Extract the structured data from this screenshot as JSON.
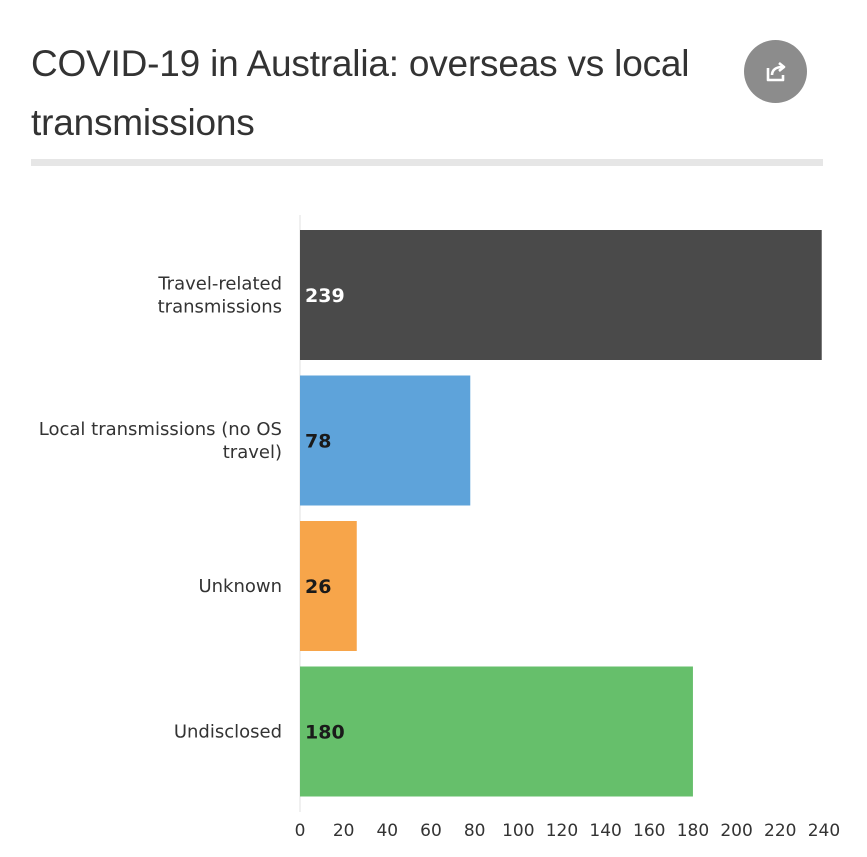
{
  "header": {
    "title": "COVID-19 in Australia: overseas vs local transmissions",
    "share_icon": "share-icon"
  },
  "colors": {
    "grid": "#e0e0e0",
    "axis_text": "#333333"
  },
  "chart_data": {
    "type": "bar",
    "orientation": "horizontal",
    "title": "COVID-19 in Australia: overseas vs local transmissions",
    "xlabel": "",
    "ylabel": "",
    "categories": [
      "Travel-related transmissions",
      "Local transmissions (no OS travel)",
      "Unknown",
      "Undisclosed"
    ],
    "category_label_lines": [
      [
        "Travel-related",
        "transmissions"
      ],
      [
        "Local transmissions (no OS",
        "travel)"
      ],
      [
        "Unknown"
      ],
      [
        "Undisclosed"
      ]
    ],
    "values": [
      239,
      78,
      26,
      180
    ],
    "data_labels": [
      "239",
      "78",
      "26",
      "180"
    ],
    "colors": [
      "#4a4a4a",
      "#5ea3da",
      "#f7a54a",
      "#66bf6b"
    ],
    "data_label_colors": [
      "#ffffff",
      "#1a1a1a",
      "#1a1a1a",
      "#1a1a1a"
    ],
    "xlim": [
      0,
      239
    ],
    "x_ticks": [
      0,
      20,
      40,
      60,
      80,
      100,
      120,
      140,
      160,
      180,
      200,
      220,
      240
    ],
    "grid": false,
    "legend": "none"
  }
}
